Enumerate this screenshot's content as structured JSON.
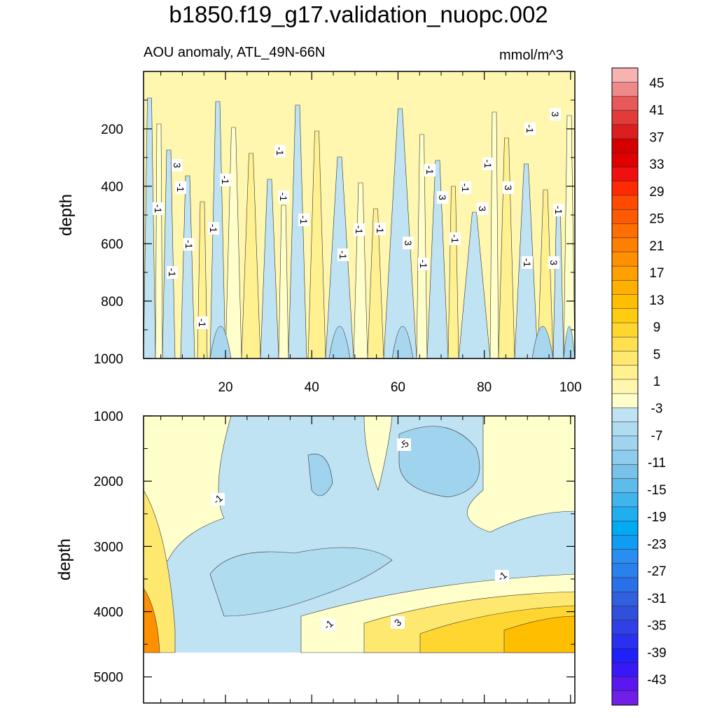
{
  "chart_data": {
    "type": "heatmap",
    "title": "b1850.f19_g17.validation_nuopc.002",
    "subtitle_left": "AOU anomaly, ATL_49N-66N",
    "subtitle_right": "mmol/m^3",
    "panels": [
      {
        "name": "upper",
        "ylabel": "depth",
        "xlim": [
          1,
          101
        ],
        "ylim": [
          1000,
          0
        ],
        "x_ticks": [
          20,
          40,
          60,
          80,
          100
        ],
        "y_ticks": [
          200,
          400,
          600,
          800,
          1000
        ],
        "contour_labels": [
          "3",
          "-1",
          "-1",
          "-1",
          "-1",
          "-1",
          "-1",
          "-1",
          "-1",
          "-1",
          "-1",
          "3",
          "-1",
          "3",
          "-1",
          "-1",
          "-1",
          "-1",
          "3",
          "3",
          "-1",
          "3",
          "-1",
          "-1",
          "3",
          "-1",
          "-1",
          "-1"
        ]
      },
      {
        "name": "lower",
        "ylabel": "depth",
        "xlim": [
          1,
          101
        ],
        "ylim": [
          5400,
          1000
        ],
        "y_ticks": [
          1000,
          2000,
          3000,
          4000,
          5000
        ],
        "contour_labels": [
          "-1",
          "-5",
          "-1",
          "-1",
          "3"
        ]
      }
    ],
    "colorbar": {
      "labels": [
        "45",
        "41",
        "37",
        "33",
        "29",
        "25",
        "21",
        "17",
        "13",
        "9",
        "5",
        "1",
        "-3",
        "-7",
        "-11",
        "-15",
        "-19",
        "-23",
        "-27",
        "-31",
        "-35",
        "-39",
        "-43"
      ],
      "colors": [
        "#f7b2b2",
        "#ef8a8a",
        "#e85a5a",
        "#e33a3a",
        "#dc1e1e",
        "#d40000",
        "#e00000",
        "#f01010",
        "#ff2a00",
        "#ff4a00",
        "#ff5a00",
        "#ff6e00",
        "#ff8000",
        "#ff9000",
        "#ffa000",
        "#ffb000",
        "#ffbf00",
        "#ffcc10",
        "#ffd630",
        "#ffe050",
        "#ffe870",
        "#fff090",
        "#fff7b0",
        "#ffffcc",
        "#bfe3f2",
        "#b0dcf0",
        "#9fd3ee",
        "#8ecbec",
        "#78c2ea",
        "#5ebcea",
        "#40b4ec",
        "#20aef0",
        "#00abf2",
        "#109cf2",
        "#2a8ef0",
        "#2a80ec",
        "#2a70e8",
        "#3060e0",
        "#3050dc",
        "#3040e8",
        "#2a30f0",
        "#2020f8",
        "#3818f6",
        "#5a18ee",
        "#7020e6"
      ]
    }
  }
}
